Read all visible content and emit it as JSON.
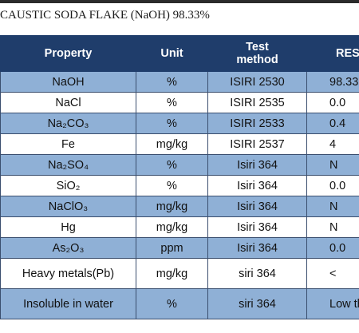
{
  "title": "CAUSTIC SODA FLAKE (NaOH) 98.33%",
  "table": {
    "headers": {
      "property": "Property",
      "unit": "Unit",
      "test_line1": "Test",
      "test_line2": "method",
      "result": "RES"
    },
    "rows": [
      {
        "property": "NaOH",
        "unit": "%",
        "method": "ISIRI 2530",
        "result": "98.33",
        "shade": "blue"
      },
      {
        "property": "NaCl",
        "unit": "%",
        "method": "ISIRI 2535",
        "result": "0.0",
        "shade": "white"
      },
      {
        "property": "Na₂CO₃",
        "unit": "%",
        "method": "ISIRI 2533",
        "result": "0.4",
        "shade": "blue"
      },
      {
        "property": "Fe",
        "unit": "mg/kg",
        "method": "ISIRI 2537",
        "result": "4",
        "shade": "white"
      },
      {
        "property": "Na₂SO₄",
        "unit": "%",
        "method": "Isiri 364",
        "result": "N",
        "shade": "blue"
      },
      {
        "property": "SiO₂",
        "unit": "%",
        "method": "Isiri 364",
        "result": "0.0",
        "shade": "white"
      },
      {
        "property": "NaClO₃",
        "unit": "mg/kg",
        "method": "Isiri 364",
        "result": "N",
        "shade": "blue"
      },
      {
        "property": "Hg",
        "unit": "mg/kg",
        "method": "Isiri 364",
        "result": "N",
        "shade": "white"
      },
      {
        "property": "As₂O₃",
        "unit": "ppm",
        "method": "Isiri 364",
        "result": "0.0",
        "shade": "blue"
      },
      {
        "property": "Heavy metals(Pb)",
        "unit": "mg/kg",
        "method": "siri 364",
        "result": "<",
        "shade": "white",
        "tall": true
      },
      {
        "property": "Insoluble in water",
        "unit": "%",
        "method": "siri 364",
        "result": "Low than lim",
        "shade": "blue",
        "tall": true
      }
    ]
  }
}
